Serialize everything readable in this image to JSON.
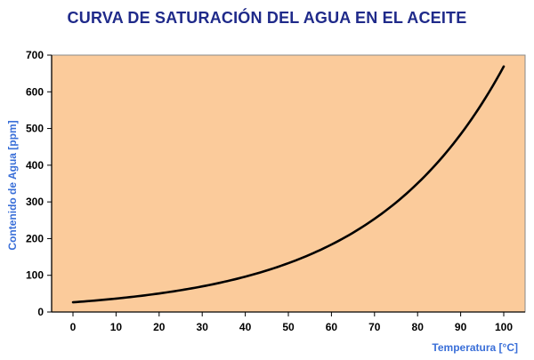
{
  "colors": {
    "plot_background": "#fbcb9b",
    "curve": "#000000",
    "title": "#1f2a8a",
    "axis_title": "#3a6fd8",
    "axis": "#000000"
  },
  "chart_data": {
    "type": "line",
    "title": "CURVA DE SATURACIÓN DEL AGUA EN EL ACEITE",
    "xlabel": "Temperatura [°C]",
    "ylabel": "Contenido de Agua [ppm]",
    "xlim": [
      0,
      100
    ],
    "ylim": [
      0,
      700
    ],
    "x_ticks": [
      0,
      10,
      20,
      30,
      40,
      50,
      60,
      70,
      80,
      90,
      100
    ],
    "y_ticks": [
      0,
      100,
      200,
      300,
      400,
      500,
      600,
      700
    ],
    "grid": false,
    "legend": "none",
    "series": [
      {
        "x": [
          0,
          10,
          20,
          30,
          40,
          50,
          60,
          70,
          80,
          90,
          100
        ],
        "values": [
          26,
          36,
          51,
          70,
          98,
          135,
          185,
          255,
          350,
          480,
          660
        ]
      }
    ]
  }
}
